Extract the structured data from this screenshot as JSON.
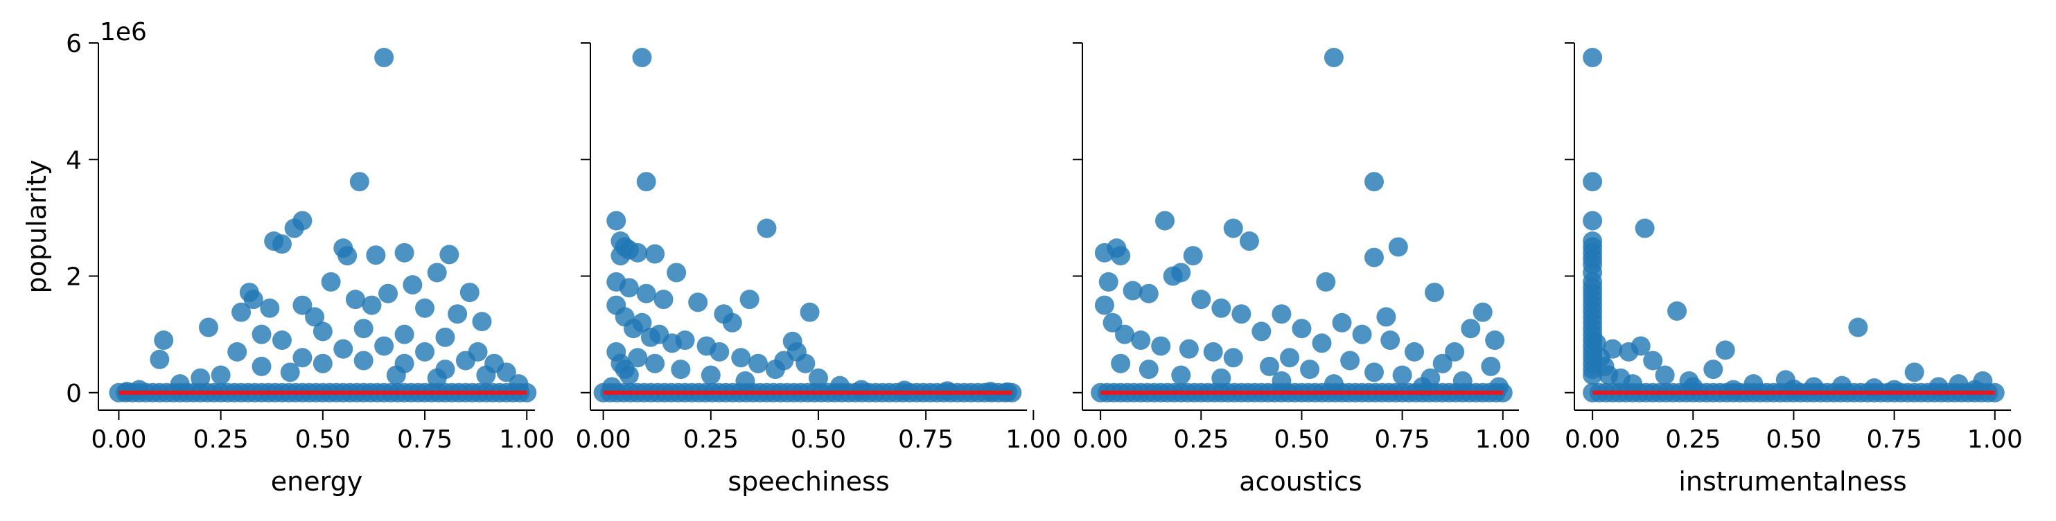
{
  "chart_data": {
    "type": "scatter",
    "ylabel": "popularity",
    "y_multiplier_label": "1e6",
    "ylim": [
      -0.3,
      6.0
    ],
    "yticks": [
      0,
      2,
      4,
      6
    ],
    "ytick_labels": [
      "0",
      "2",
      "4",
      "6"
    ],
    "sharey": true,
    "point_color": "#1f77b4",
    "fit_line_color": "#e8161f",
    "panels": [
      {
        "xlabel": "energy",
        "xlim": [
          -0.05,
          1.02
        ],
        "xticks": [
          0.0,
          0.25,
          0.5,
          0.75,
          1.0
        ],
        "xtick_labels": [
          "0.00",
          "0.25",
          "0.50",
          "0.75",
          "1.00"
        ],
        "fit_line": [
          [
            0.0,
            0.0
          ],
          [
            1.0,
            0.0
          ]
        ],
        "points": [
          [
            0.65,
            5.75
          ],
          [
            0.59,
            3.62
          ],
          [
            0.45,
            2.95
          ],
          [
            0.43,
            2.82
          ],
          [
            0.38,
            2.6
          ],
          [
            0.4,
            2.55
          ],
          [
            0.55,
            2.48
          ],
          [
            0.56,
            2.35
          ],
          [
            0.63,
            2.36
          ],
          [
            0.7,
            2.4
          ],
          [
            0.81,
            2.37
          ],
          [
            0.78,
            2.06
          ],
          [
            0.22,
            1.12
          ],
          [
            0.11,
            0.9
          ],
          [
            0.1,
            0.57
          ],
          [
            0.32,
            1.72
          ],
          [
            0.3,
            1.38
          ],
          [
            0.33,
            1.6
          ],
          [
            0.37,
            1.45
          ],
          [
            0.45,
            1.5
          ],
          [
            0.52,
            1.9
          ],
          [
            0.58,
            1.6
          ],
          [
            0.66,
            1.7
          ],
          [
            0.72,
            1.85
          ],
          [
            0.86,
            1.72
          ],
          [
            0.89,
            1.22
          ],
          [
            0.92,
            0.5
          ],
          [
            0.29,
            0.7
          ],
          [
            0.35,
            1.0
          ],
          [
            0.48,
            1.3
          ],
          [
            0.62,
            1.5
          ],
          [
            0.75,
            1.45
          ],
          [
            0.83,
            1.35
          ],
          [
            0.4,
            0.9
          ],
          [
            0.5,
            1.05
          ],
          [
            0.6,
            1.1
          ],
          [
            0.7,
            1.0
          ],
          [
            0.8,
            0.95
          ],
          [
            0.88,
            0.7
          ],
          [
            0.95,
            0.35
          ],
          [
            0.98,
            0.15
          ],
          [
            0.45,
            0.6
          ],
          [
            0.55,
            0.75
          ],
          [
            0.65,
            0.8
          ],
          [
            0.75,
            0.7
          ],
          [
            0.85,
            0.55
          ],
          [
            0.35,
            0.45
          ],
          [
            0.25,
            0.3
          ],
          [
            0.2,
            0.25
          ],
          [
            0.15,
            0.15
          ],
          [
            0.05,
            0.05
          ],
          [
            0.02,
            0.02
          ],
          [
            0.5,
            0.5
          ],
          [
            0.6,
            0.55
          ],
          [
            0.7,
            0.5
          ],
          [
            0.8,
            0.4
          ],
          [
            0.9,
            0.3
          ],
          [
            0.42,
            0.35
          ],
          [
            0.68,
            0.3
          ],
          [
            0.78,
            0.25
          ]
        ]
      },
      {
        "xlabel": "speechiness",
        "xlim": [
          -0.03,
          0.985
        ],
        "xticks": [
          0.0,
          0.25,
          0.5,
          0.75,
          1.0
        ],
        "xtick_labels": [
          "0.00",
          "0.25",
          "0.50",
          "0.75",
          "1.00"
        ],
        "fit_line": [
          [
            0.0,
            0.0
          ],
          [
            0.95,
            0.0
          ]
        ],
        "points": [
          [
            0.09,
            5.75
          ],
          [
            0.1,
            3.62
          ],
          [
            0.03,
            2.95
          ],
          [
            0.04,
            2.6
          ],
          [
            0.05,
            2.5
          ],
          [
            0.06,
            2.45
          ],
          [
            0.08,
            2.4
          ],
          [
            0.12,
            2.38
          ],
          [
            0.38,
            2.82
          ],
          [
            0.17,
            2.06
          ],
          [
            0.04,
            2.35
          ],
          [
            0.03,
            1.9
          ],
          [
            0.06,
            1.8
          ],
          [
            0.1,
            1.7
          ],
          [
            0.14,
            1.6
          ],
          [
            0.22,
            1.55
          ],
          [
            0.28,
            1.35
          ],
          [
            0.3,
            1.2
          ],
          [
            0.34,
            1.6
          ],
          [
            0.48,
            1.38
          ],
          [
            0.44,
            0.88
          ],
          [
            0.45,
            0.7
          ],
          [
            0.42,
            0.55
          ],
          [
            0.47,
            0.5
          ],
          [
            0.03,
            1.5
          ],
          [
            0.05,
            1.3
          ],
          [
            0.07,
            1.1
          ],
          [
            0.09,
            1.2
          ],
          [
            0.11,
            0.95
          ],
          [
            0.13,
            1.0
          ],
          [
            0.16,
            0.85
          ],
          [
            0.19,
            0.9
          ],
          [
            0.24,
            0.8
          ],
          [
            0.27,
            0.7
          ],
          [
            0.32,
            0.6
          ],
          [
            0.36,
            0.5
          ],
          [
            0.4,
            0.4
          ],
          [
            0.5,
            0.25
          ],
          [
            0.55,
            0.12
          ],
          [
            0.6,
            0.05
          ],
          [
            0.7,
            0.04
          ],
          [
            0.8,
            0.03
          ],
          [
            0.9,
            0.02
          ],
          [
            0.94,
            0.01
          ],
          [
            0.03,
            0.7
          ],
          [
            0.04,
            0.5
          ],
          [
            0.05,
            0.4
          ],
          [
            0.06,
            0.3
          ],
          [
            0.08,
            0.6
          ],
          [
            0.12,
            0.5
          ],
          [
            0.18,
            0.4
          ],
          [
            0.25,
            0.3
          ],
          [
            0.33,
            0.2
          ],
          [
            0.02,
            0.1
          ]
        ]
      },
      {
        "xlabel": "acoustics",
        "xlim": [
          -0.045,
          1.04
        ],
        "xticks": [
          0.0,
          0.25,
          0.5,
          0.75,
          1.0
        ],
        "xtick_labels": [
          "0.00",
          "0.25",
          "0.50",
          "0.75",
          "1.00"
        ],
        "fit_line": [
          [
            0.0,
            0.0
          ],
          [
            1.0,
            0.0
          ]
        ],
        "points": [
          [
            0.58,
            5.75
          ],
          [
            0.68,
            3.62
          ],
          [
            0.16,
            2.95
          ],
          [
            0.33,
            2.82
          ],
          [
            0.37,
            2.6
          ],
          [
            0.74,
            2.5
          ],
          [
            0.04,
            2.48
          ],
          [
            0.05,
            2.35
          ],
          [
            0.01,
            2.4
          ],
          [
            0.23,
            2.35
          ],
          [
            0.68,
            2.32
          ],
          [
            0.2,
            2.06
          ],
          [
            0.18,
            2.0
          ],
          [
            0.56,
            1.9
          ],
          [
            0.83,
            1.72
          ],
          [
            0.02,
            1.9
          ],
          [
            0.08,
            1.75
          ],
          [
            0.12,
            1.7
          ],
          [
            0.25,
            1.6
          ],
          [
            0.3,
            1.45
          ],
          [
            0.35,
            1.35
          ],
          [
            0.45,
            1.35
          ],
          [
            0.6,
            1.2
          ],
          [
            0.71,
            1.3
          ],
          [
            0.95,
            1.38
          ],
          [
            0.92,
            1.1
          ],
          [
            0.98,
            0.9
          ],
          [
            0.65,
            1.0
          ],
          [
            0.72,
            0.9
          ],
          [
            0.78,
            0.7
          ],
          [
            0.88,
            0.7
          ],
          [
            0.5,
            1.1
          ],
          [
            0.4,
            1.05
          ],
          [
            0.55,
            0.85
          ],
          [
            0.47,
            0.6
          ],
          [
            0.62,
            0.55
          ],
          [
            0.85,
            0.5
          ],
          [
            0.97,
            0.45
          ],
          [
            0.01,
            1.5
          ],
          [
            0.03,
            1.2
          ],
          [
            0.06,
            1.0
          ],
          [
            0.1,
            0.9
          ],
          [
            0.15,
            0.8
          ],
          [
            0.22,
            0.75
          ],
          [
            0.28,
            0.7
          ],
          [
            0.33,
            0.6
          ],
          [
            0.42,
            0.45
          ],
          [
            0.52,
            0.4
          ],
          [
            0.68,
            0.35
          ],
          [
            0.75,
            0.3
          ],
          [
            0.82,
            0.25
          ],
          [
            0.9,
            0.2
          ],
          [
            0.99,
            0.1
          ],
          [
            0.05,
            0.5
          ],
          [
            0.12,
            0.4
          ],
          [
            0.2,
            0.3
          ],
          [
            0.3,
            0.25
          ],
          [
            0.45,
            0.2
          ],
          [
            0.58,
            0.15
          ],
          [
            0.8,
            0.1
          ]
        ]
      },
      {
        "xlabel": "instrumentalness",
        "xlim": [
          -0.045,
          1.04
        ],
        "xticks": [
          0.0,
          0.25,
          0.5,
          0.75,
          1.0
        ],
        "xtick_labels": [
          "0.00",
          "0.25",
          "0.50",
          "0.75",
          "1.00"
        ],
        "fit_line": [
          [
            0.0,
            0.0
          ],
          [
            1.0,
            0.0
          ]
        ],
        "points": [
          [
            0.0,
            5.75
          ],
          [
            0.0,
            3.62
          ],
          [
            0.0,
            2.95
          ],
          [
            0.0,
            2.6
          ],
          [
            0.0,
            2.5
          ],
          [
            0.0,
            2.4
          ],
          [
            0.0,
            2.3
          ],
          [
            0.0,
            2.2
          ],
          [
            0.0,
            2.06
          ],
          [
            0.0,
            1.9
          ],
          [
            0.0,
            1.8
          ],
          [
            0.0,
            1.7
          ],
          [
            0.0,
            1.6
          ],
          [
            0.0,
            1.5
          ],
          [
            0.0,
            1.4
          ],
          [
            0.0,
            1.3
          ],
          [
            0.0,
            1.2
          ],
          [
            0.0,
            1.1
          ],
          [
            0.0,
            1.0
          ],
          [
            0.0,
            0.9
          ],
          [
            0.0,
            0.8
          ],
          [
            0.0,
            0.7
          ],
          [
            0.0,
            0.6
          ],
          [
            0.0,
            0.5
          ],
          [
            0.0,
            0.4
          ],
          [
            0.0,
            0.3
          ],
          [
            0.01,
            0.85
          ],
          [
            0.02,
            0.6
          ],
          [
            0.13,
            2.82
          ],
          [
            0.21,
            1.4
          ],
          [
            0.66,
            1.12
          ],
          [
            0.33,
            0.73
          ],
          [
            0.05,
            0.75
          ],
          [
            0.09,
            0.7
          ],
          [
            0.12,
            0.8
          ],
          [
            0.15,
            0.55
          ],
          [
            0.18,
            0.3
          ],
          [
            0.24,
            0.2
          ],
          [
            0.3,
            0.4
          ],
          [
            0.4,
            0.15
          ],
          [
            0.48,
            0.22
          ],
          [
            0.55,
            0.1
          ],
          [
            0.62,
            0.12
          ],
          [
            0.7,
            0.08
          ],
          [
            0.8,
            0.35
          ],
          [
            0.86,
            0.1
          ],
          [
            0.91,
            0.15
          ],
          [
            0.97,
            0.2
          ],
          [
            0.04,
            0.3
          ],
          [
            0.07,
            0.25
          ],
          [
            0.1,
            0.15
          ],
          [
            0.03,
            0.45
          ],
          [
            0.25,
            0.1
          ],
          [
            0.35,
            0.05
          ],
          [
            0.5,
            0.06
          ],
          [
            0.75,
            0.05
          ],
          [
            0.95,
            0.05
          ]
        ]
      }
    ]
  }
}
